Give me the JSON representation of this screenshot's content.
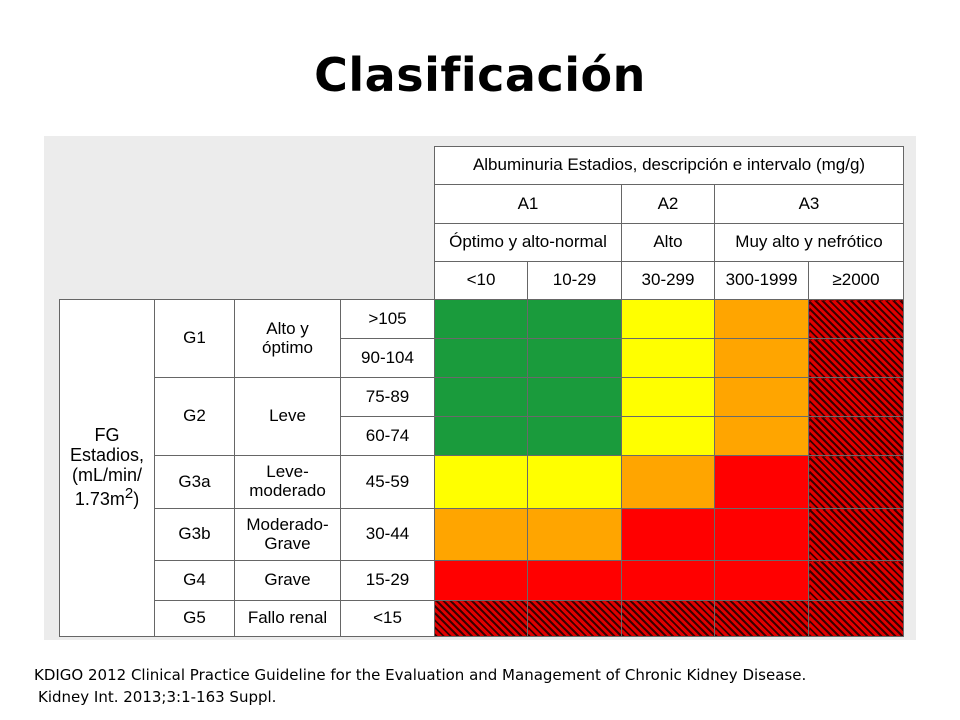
{
  "title": "Clasificación",
  "table": {
    "albuminuria_header": "Albuminuria Estadios, descripción e intervalo (mg/g)",
    "stages": [
      "A1",
      "A2",
      "A3"
    ],
    "descriptions": [
      "Óptimo y alto-normal",
      "Alto",
      "Muy alto y nefrótico"
    ],
    "ranges": [
      "<10",
      "10-29",
      "30-299",
      "300-1999",
      "≥2000"
    ],
    "fg_label": {
      "line1": "FG",
      "line2": "Estadios,",
      "line3": "(mL/min/",
      "line4_base": "1.73m",
      "line4_sup": "2",
      "line4_tail": ")"
    },
    "groups": [
      {
        "stage": "G1",
        "desc_line1": "Alto y",
        "desc_line2": "óptimo"
      },
      {
        "stage": "G2",
        "desc_line1": "Leve",
        "desc_line2": ""
      },
      {
        "stage": "G3a",
        "desc_line1": "Leve-",
        "desc_line2": "moderado"
      },
      {
        "stage": "G3b",
        "desc_line1": "Moderado-",
        "desc_line2": "Grave"
      },
      {
        "stage": "G4",
        "desc_line1": "Grave",
        "desc_line2": ""
      },
      {
        "stage": "G5",
        "desc_line1": "Fallo renal",
        "desc_line2": ""
      }
    ],
    "rows": [
      {
        "gfr": ">105",
        "colors": [
          "green",
          "green",
          "yellow",
          "orange",
          "hatch"
        ]
      },
      {
        "gfr": "90-104",
        "colors": [
          "green",
          "green",
          "yellow",
          "orange",
          "hatch"
        ]
      },
      {
        "gfr": "75-89",
        "colors": [
          "green",
          "green",
          "yellow",
          "orange",
          "hatch"
        ]
      },
      {
        "gfr": "60-74",
        "colors": [
          "green",
          "green",
          "yellow",
          "orange",
          "hatch"
        ]
      },
      {
        "gfr": "45-59",
        "colors": [
          "yellow",
          "yellow",
          "orange",
          "red",
          "hatch"
        ]
      },
      {
        "gfr": "30-44",
        "colors": [
          "orange",
          "orange",
          "red",
          "red",
          "hatch"
        ]
      },
      {
        "gfr": "15-29",
        "colors": [
          "red",
          "red",
          "red",
          "red",
          "hatch"
        ]
      },
      {
        "gfr": "<15",
        "colors": [
          "hatch",
          "hatch",
          "hatch",
          "hatch",
          "hatch"
        ]
      }
    ],
    "color_values": {
      "green": "#1a9b3c",
      "yellow": "#ffff00",
      "orange": "#ffa500",
      "red": "#ff0000",
      "hatch": "#d10000"
    }
  },
  "citation": {
    "line1": "KDIGO 2012 Clinical Practice Guideline for the Evaluation and Management of Chronic Kidney Disease.",
    "line2": "Kidney Int. 2013;3:1-163 Suppl."
  }
}
